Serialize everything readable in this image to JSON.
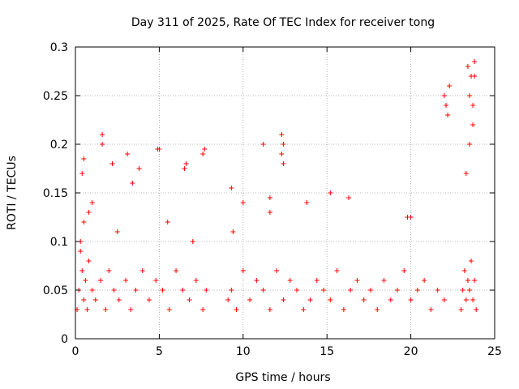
{
  "chart_data": {
    "type": "scatter",
    "title": "Day 311 of 2025, Rate Of TEC Index for receiver tong",
    "xlabel": "GPS time / hours",
    "ylabel": "ROTI / TECUs",
    "xlim": [
      0,
      25
    ],
    "ylim": [
      0,
      0.3
    ],
    "xticks": [
      0,
      5,
      10,
      15,
      20,
      25
    ],
    "yticks": [
      0,
      0.05,
      0.1,
      0.15,
      0.2,
      0.25,
      0.3
    ],
    "xtick_labels": [
      "0",
      "5",
      "10",
      "15",
      "20",
      "25"
    ],
    "ytick_labels": [
      "0",
      "0.05",
      "0.1",
      "0.15",
      "0.2",
      "0.25",
      "0.3"
    ],
    "grid": true,
    "marker": "+",
    "color": "#ff0000",
    "series": [
      {
        "x": [
          0.1,
          0.2,
          0.3,
          0.4,
          0.5,
          0.6,
          0.7,
          0.8,
          1.0,
          1.2,
          1.5,
          1.8,
          2.0,
          2.3,
          2.6,
          3.0,
          3.3,
          3.6,
          4.0,
          4.4,
          4.8,
          5.2,
          5.6,
          6.0,
          6.4,
          6.8,
          7.2,
          7.6,
          7.8,
          0.4,
          0.5,
          1.0,
          1.6,
          2.2,
          3.1,
          3.4,
          4.9,
          6.6,
          7.6,
          0.5,
          1.6,
          3.8,
          5.0,
          6.5,
          7.7,
          0.3,
          0.8,
          2.5,
          5.5,
          7.0,
          9.1,
          9.3,
          9.6,
          10.0,
          10.4,
          10.8,
          11.2,
          11.6,
          12.0,
          12.4,
          12.8,
          13.2,
          13.6,
          14.0,
          14.4,
          14.8,
          15.2,
          15.6,
          16.0,
          16.4,
          16.8,
          17.2,
          17.6,
          18.0,
          18.4,
          18.8,
          19.2,
          19.6,
          20.0,
          20.4,
          20.8,
          21.2,
          21.6,
          22.0,
          9.3,
          10.0,
          11.2,
          11.6,
          12.3,
          12.4,
          13.8,
          15.2,
          16.3,
          19.8,
          20.0,
          22.0,
          12.3,
          12.4,
          11.6,
          9.4,
          23.0,
          23.1,
          23.2,
          23.3,
          23.4,
          23.5,
          23.6,
          23.7,
          23.8,
          23.9,
          23.4,
          23.5,
          23.6,
          23.7,
          23.8,
          23.8,
          23.7,
          23.5,
          23.3,
          22.1,
          22.2,
          22.3
        ],
        "y": [
          0.03,
          0.05,
          0.09,
          0.07,
          0.04,
          0.06,
          0.03,
          0.08,
          0.05,
          0.04,
          0.06,
          0.03,
          0.07,
          0.05,
          0.04,
          0.06,
          0.03,
          0.05,
          0.07,
          0.04,
          0.06,
          0.05,
          0.03,
          0.07,
          0.05,
          0.04,
          0.06,
          0.03,
          0.05,
          0.17,
          0.185,
          0.14,
          0.21,
          0.18,
          0.19,
          0.16,
          0.195,
          0.18,
          0.19,
          0.12,
          0.2,
          0.175,
          0.195,
          0.175,
          0.195,
          0.1,
          0.13,
          0.11,
          0.12,
          0.1,
          0.04,
          0.05,
          0.03,
          0.07,
          0.04,
          0.06,
          0.05,
          0.03,
          0.07,
          0.04,
          0.06,
          0.05,
          0.03,
          0.04,
          0.06,
          0.05,
          0.04,
          0.07,
          0.03,
          0.05,
          0.06,
          0.04,
          0.05,
          0.03,
          0.06,
          0.04,
          0.05,
          0.07,
          0.04,
          0.05,
          0.06,
          0.03,
          0.05,
          0.04,
          0.155,
          0.14,
          0.2,
          0.145,
          0.21,
          0.2,
          0.14,
          0.15,
          0.145,
          0.125,
          0.125,
          0.25,
          0.19,
          0.18,
          0.13,
          0.11,
          0.03,
          0.05,
          0.07,
          0.04,
          0.06,
          0.05,
          0.08,
          0.04,
          0.06,
          0.03,
          0.28,
          0.25,
          0.27,
          0.22,
          0.285,
          0.27,
          0.24,
          0.2,
          0.17,
          0.24,
          0.23,
          0.26
        ]
      }
    ]
  }
}
